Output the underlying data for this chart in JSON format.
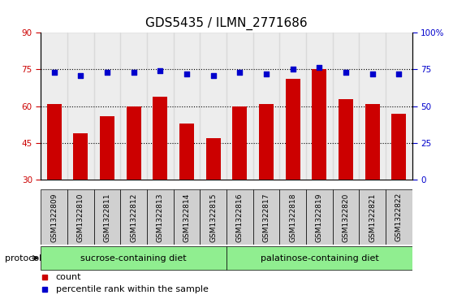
{
  "title": "GDS5435 / ILMN_2771686",
  "samples": [
    "GSM1322809",
    "GSM1322810",
    "GSM1322811",
    "GSM1322812",
    "GSM1322813",
    "GSM1322814",
    "GSM1322815",
    "GSM1322816",
    "GSM1322817",
    "GSM1322818",
    "GSM1322819",
    "GSM1322820",
    "GSM1322821",
    "GSM1322822"
  ],
  "bar_values": [
    61,
    49,
    56,
    60,
    64,
    53,
    47,
    60,
    61,
    71,
    75,
    63,
    61,
    57
  ],
  "dot_values": [
    73,
    71,
    73,
    73,
    74,
    72,
    71,
    73,
    72,
    75,
    76,
    73,
    72,
    72
  ],
  "bar_color": "#cc0000",
  "dot_color": "#0000cc",
  "ylim_left": [
    30,
    90
  ],
  "ylim_right": [
    0,
    100
  ],
  "yticks_left": [
    30,
    45,
    60,
    75,
    90
  ],
  "yticks_right": [
    0,
    25,
    50,
    75,
    100
  ],
  "ytick_labels_right": [
    "0",
    "25",
    "50",
    "75",
    "100%"
  ],
  "grid_values": [
    45,
    60,
    75
  ],
  "protocol_groups": [
    {
      "label": "sucrose-containing diet",
      "start": 0,
      "end": 7
    },
    {
      "label": "palatinose-containing diet",
      "start": 7,
      "end": 14
    }
  ],
  "protocol_label": "protocol",
  "group_color": "#90ee90",
  "legend_items": [
    {
      "label": "count",
      "color": "#cc0000"
    },
    {
      "label": "percentile rank within the sample",
      "color": "#0000cc"
    }
  ],
  "title_fontsize": 11,
  "tick_fontsize": 7.5,
  "bar_width": 0.55
}
